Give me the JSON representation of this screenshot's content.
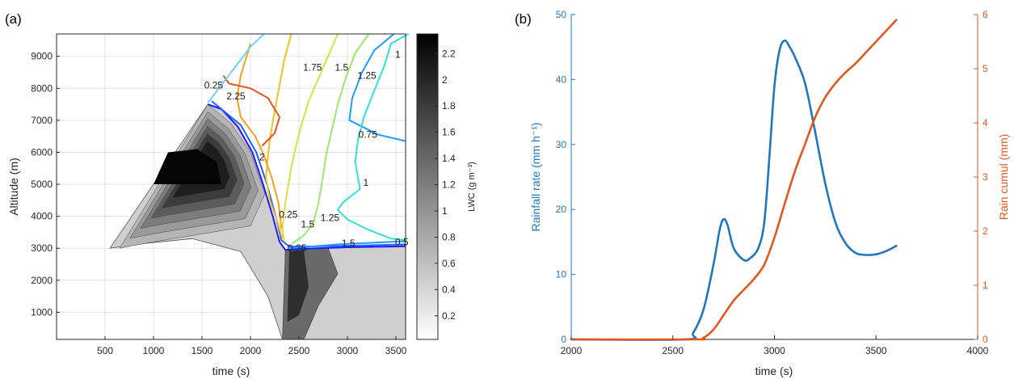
{
  "chart_data": [
    {
      "type": "contour",
      "panel_label": "(a)",
      "xlabel": "time (s)",
      "ylabel": "Altitude (m)",
      "xlim": [
        0,
        3600
      ],
      "ylim": [
        150,
        9700
      ],
      "xticks": [
        500,
        1000,
        1500,
        2000,
        2500,
        3000,
        3500
      ],
      "yticks": [
        1000,
        2000,
        3000,
        4000,
        5000,
        6000,
        7000,
        8000,
        9000
      ],
      "grid": true,
      "colorbar": {
        "label": "LWC (g m⁻³)",
        "range": [
          0.02,
          2.35
        ],
        "ticks": [
          0.2,
          0.4,
          0.6,
          0.8,
          1,
          1.2,
          1.4,
          1.6,
          1.8,
          2,
          2.2
        ],
        "colors": [
          "#ffffff",
          "#000000"
        ]
      },
      "filled_region": {
        "name": "LWC shading",
        "boundary": [
          [
            550,
            3000
          ],
          [
            1560,
            7500
          ],
          [
            1700,
            7350
          ],
          [
            1870,
            6800
          ],
          [
            2020,
            6000
          ],
          [
            2130,
            5000
          ],
          [
            2230,
            4000
          ],
          [
            2300,
            3200
          ],
          [
            2360,
            2950
          ],
          [
            2500,
            2980
          ],
          [
            3000,
            3030
          ],
          [
            3600,
            3060
          ],
          [
            3600,
            150
          ],
          [
            2330,
            150
          ],
          [
            2180,
            1500
          ],
          [
            1900,
            2900
          ],
          [
            1400,
            3300
          ],
          [
            900,
            3150
          ],
          [
            550,
            3000
          ]
        ],
        "core": [
          [
            1000,
            5000
          ],
          [
            1150,
            6000
          ],
          [
            1450,
            6100
          ],
          [
            1650,
            5700
          ],
          [
            1700,
            5000
          ]
        ]
      },
      "contour_labels": [
        {
          "text": "1.75",
          "x": 2640,
          "y": 8550
        },
        {
          "text": "1.5",
          "x": 2940,
          "y": 8550
        },
        {
          "text": "1.25",
          "x": 3200,
          "y": 8300
        },
        {
          "text": "1",
          "x": 3520,
          "y": 8950
        },
        {
          "text": "0.75",
          "x": 3210,
          "y": 6450
        },
        {
          "text": "2.25",
          "x": 1850,
          "y": 7650
        },
        {
          "text": "2",
          "x": 2120,
          "y": 5750
        },
        {
          "text": "1.5",
          "x": 2590,
          "y": 3650
        },
        {
          "text": "1.25",
          "x": 2820,
          "y": 3850
        },
        {
          "text": "1",
          "x": 3190,
          "y": 4950
        },
        {
          "text": "1.5",
          "x": 3010,
          "y": 3050
        },
        {
          "text": "0.25",
          "x": 2390,
          "y": 3950
        },
        {
          "text": "0.25",
          "x": 2480,
          "y": 2900
        },
        {
          "text": "0.5",
          "x": 3560,
          "y": 3090
        },
        {
          "text": "0.25",
          "x": 1620,
          "y": 8000
        }
      ],
      "contour_lines": [
        {
          "level": 0.25,
          "color": "#1a1aff",
          "points": [
            [
              1560,
              7500
            ],
            [
              1700,
              7350
            ],
            [
              1870,
              6800
            ],
            [
              2020,
              6000
            ],
            [
              2130,
              5000
            ],
            [
              2230,
              4000
            ],
            [
              2300,
              3200
            ],
            [
              2360,
              2950
            ],
            [
              2500,
              2980
            ],
            [
              3000,
              3030
            ],
            [
              3600,
              3060
            ]
          ]
        },
        {
          "level": 0.5,
          "color": "#2060ff",
          "points": [
            [
              1600,
              7600
            ],
            [
              1900,
              6850
            ],
            [
              2060,
              6000
            ],
            [
              2170,
              5000
            ],
            [
              2260,
              4000
            ],
            [
              2320,
              3250
            ],
            [
              2400,
              3050
            ],
            [
              2700,
              3060
            ],
            [
              3100,
              3080
            ],
            [
              3600,
              3120
            ]
          ]
        },
        {
          "level": 0.75,
          "color": "#1f9bff",
          "points": [
            [
              3480,
              9700
            ],
            [
              3280,
              9200
            ],
            [
              3150,
              8500
            ],
            [
              3050,
              7700
            ],
            [
              3020,
              7000
            ],
            [
              3320,
              6550
            ],
            [
              3600,
              6350
            ]
          ]
        },
        {
          "level": 0.75,
          "color": "#1f9bff",
          "points": [
            [
              2400,
              3000
            ],
            [
              2900,
              3120
            ],
            [
              3300,
              3180
            ],
            [
              3600,
              3220
            ]
          ]
        },
        {
          "level": 1.0,
          "color": "#2de0e0",
          "points": [
            [
              3630,
              9700
            ],
            [
              3450,
              9400
            ],
            [
              3380,
              8700
            ],
            [
              3260,
              7800
            ],
            [
              3170,
              7100
            ],
            [
              3110,
              6400
            ],
            [
              3080,
              5700
            ],
            [
              3130,
              4850
            ],
            [
              2960,
              4450
            ],
            [
              2900,
              4200
            ],
            [
              3000,
              3900
            ],
            [
              3200,
              3600
            ],
            [
              3450,
              3300
            ],
            [
              3600,
              3250
            ]
          ]
        },
        {
          "level": 1.25,
          "color": "#9be86a",
          "points": [
            [
              3220,
              9700
            ],
            [
              3080,
              9100
            ],
            [
              2980,
              8300
            ],
            [
              2900,
              7500
            ],
            [
              2840,
              6700
            ],
            [
              2780,
              5900
            ],
            [
              2740,
              5100
            ],
            [
              2700,
              4400
            ],
            [
              2650,
              3800
            ],
            [
              2550,
              3400
            ],
            [
              2430,
              3150
            ]
          ]
        },
        {
          "level": 1.5,
          "color": "#d8e040",
          "points": [
            [
              2900,
              9700
            ],
            [
              2800,
              9000
            ],
            [
              2700,
              8300
            ],
            [
              2600,
              7600
            ],
            [
              2530,
              6900
            ],
            [
              2470,
              6200
            ],
            [
              2420,
              5500
            ],
            [
              2380,
              4800
            ],
            [
              2350,
              4200
            ],
            [
              2330,
              3600
            ],
            [
              2350,
              3200
            ]
          ]
        },
        {
          "level": 1.75,
          "color": "#f2c020",
          "points": [
            [
              2420,
              9700
            ],
            [
              2350,
              8900
            ],
            [
              2300,
              8100
            ],
            [
              2250,
              7300
            ],
            [
              2210,
              6600
            ],
            [
              2180,
              5900
            ],
            [
              2160,
              5200
            ],
            [
              2200,
              4500
            ],
            [
              2280,
              3800
            ],
            [
              2330,
              3300
            ]
          ]
        },
        {
          "level": 2.0,
          "color": "#f4a020",
          "points": [
            [
              2000,
              9400
            ],
            [
              1900,
              8400
            ],
            [
              1860,
              7700
            ],
            [
              1900,
              7100
            ],
            [
              2050,
              6500
            ],
            [
              2140,
              5900
            ],
            [
              2220,
              5200
            ],
            [
              2290,
              4400
            ],
            [
              2320,
              3600
            ]
          ]
        },
        {
          "level": 2.25,
          "color": "#e2571e",
          "points": [
            [
              1720,
              8400
            ],
            [
              1780,
              8150
            ],
            [
              2000,
              8000
            ],
            [
              2180,
              7700
            ],
            [
              2300,
              7100
            ],
            [
              2250,
              6600
            ],
            [
              2120,
              6200
            ]
          ]
        },
        {
          "level": 1.0,
          "color": "#6fd0ff",
          "points": [
            [
              1560,
              7550
            ],
            [
              1800,
              8500
            ],
            [
              2000,
              9300
            ],
            [
              2140,
              9700
            ]
          ]
        }
      ]
    },
    {
      "type": "line",
      "panel_label": "(b)",
      "xlabel": "time (s)",
      "ylabel": "Rainfall rate (mm h⁻¹)",
      "ylabel_right": "Rain cumul (mm)",
      "xlim": [
        2000,
        4000
      ],
      "ylim": [
        0,
        50
      ],
      "ylim_right": [
        0,
        6
      ],
      "xticks": [
        2000,
        2500,
        3000,
        3500,
        4000
      ],
      "yticks": [
        0,
        10,
        20,
        30,
        40,
        50
      ],
      "yticks_right": [
        0,
        1,
        2,
        3,
        4,
        5,
        6
      ],
      "grid": false,
      "series": [
        {
          "axis": "left",
          "color": "#1f77c0",
          "x": [
            2000,
            2560,
            2600,
            2650,
            2700,
            2730,
            2750,
            2770,
            2800,
            2850,
            2880,
            2920,
            2950,
            2975,
            3000,
            3025,
            3050,
            3075,
            3100,
            3150,
            3200,
            3250,
            3300,
            3350,
            3400,
            3450,
            3500,
            3550,
            3600
          ],
          "values": [
            0,
            0,
            1.0,
            4.5,
            11.5,
            16.8,
            18.5,
            17.5,
            14.0,
            12.2,
            12.5,
            14.0,
            18.0,
            28.0,
            39.0,
            44.5,
            46.0,
            45.0,
            43.5,
            39.5,
            32.0,
            24.0,
            18.0,
            14.8,
            13.3,
            13.0,
            13.1,
            13.6,
            14.4
          ]
        },
        {
          "axis": "right",
          "color": "#e2571e",
          "x": [
            2000,
            2600,
            2650,
            2700,
            2750,
            2800,
            2850,
            2900,
            2950,
            3000,
            3050,
            3100,
            3150,
            3200,
            3250,
            3300,
            3350,
            3400,
            3450,
            3500,
            3550,
            3600
          ],
          "values": [
            0,
            0,
            0.03,
            0.18,
            0.45,
            0.72,
            0.92,
            1.12,
            1.38,
            1.88,
            2.5,
            3.1,
            3.6,
            4.1,
            4.47,
            4.73,
            4.93,
            5.1,
            5.3,
            5.5,
            5.7,
            5.9
          ]
        }
      ]
    }
  ]
}
